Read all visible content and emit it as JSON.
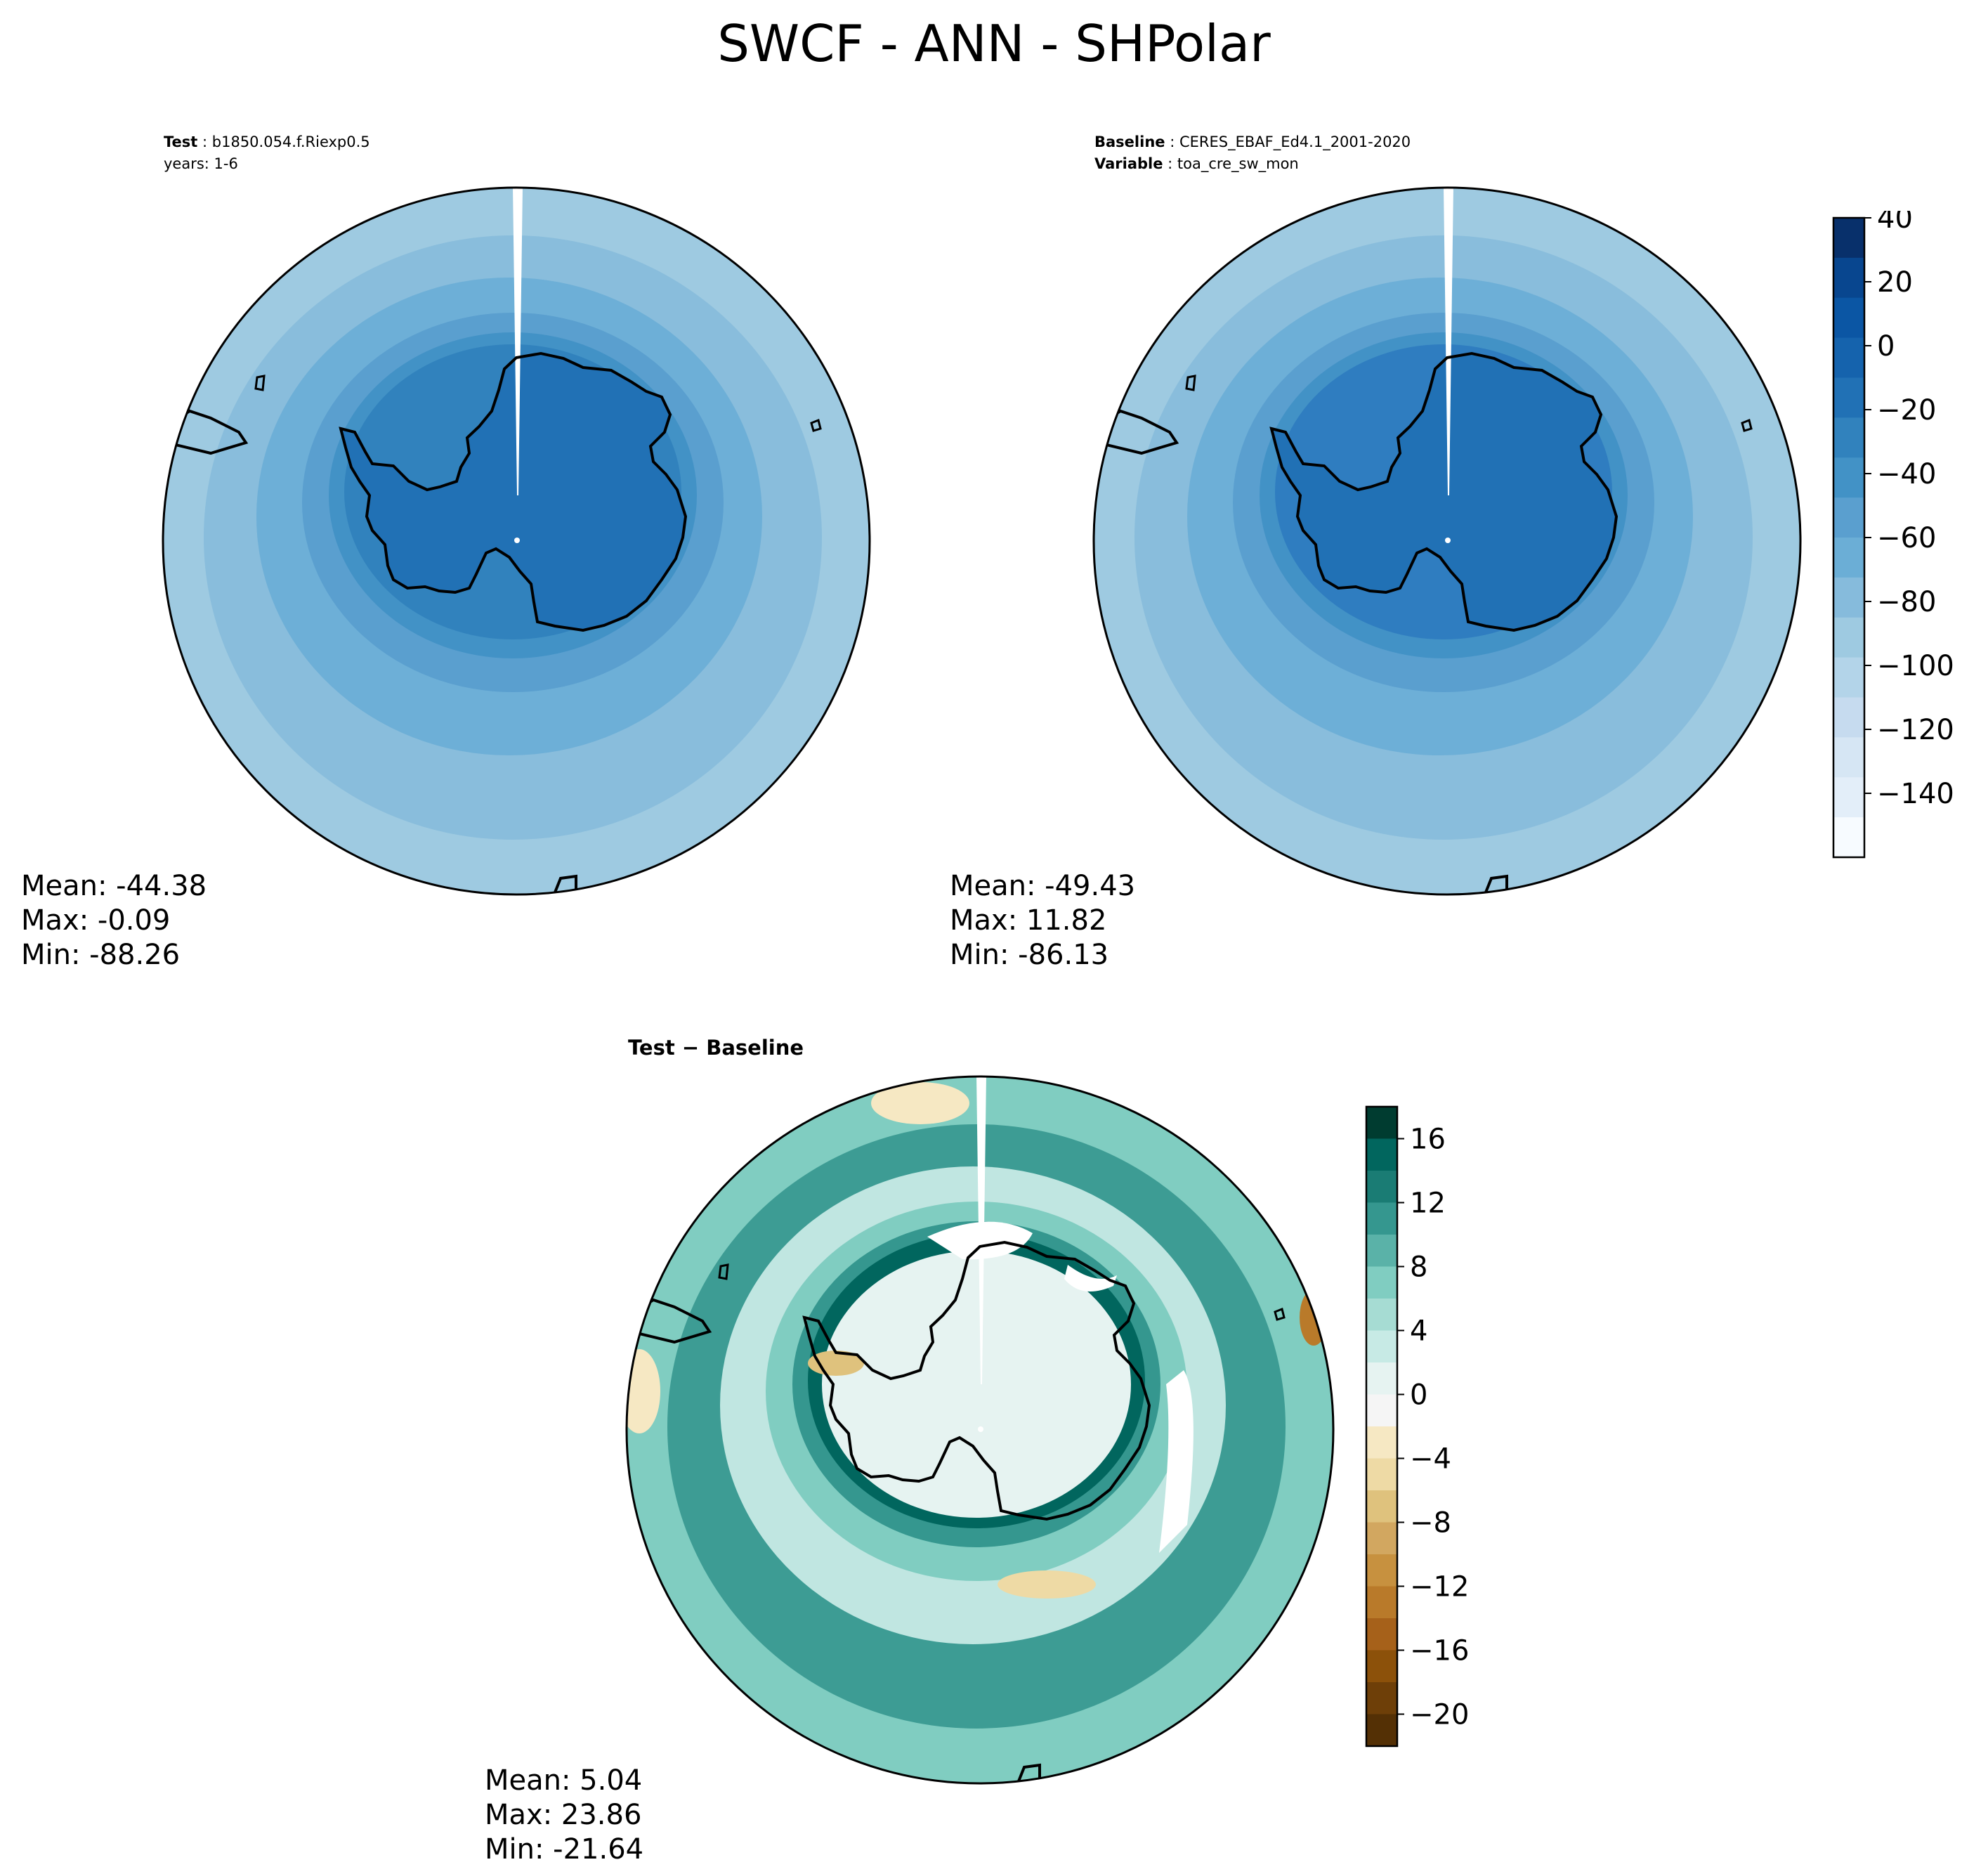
{
  "title": "SWCF - ANN - SHPolar",
  "panels": [
    {
      "id": "test",
      "header": {
        "label": "Test",
        "value": "b1850.054.f.Riexp0.5",
        "line2": "years: 1-6"
      },
      "stats": {
        "mean": "Mean: -44.38",
        "max": "Max: -0.09",
        "min": "Min: -88.26"
      },
      "center_value": -15,
      "fill": [
        "#2171b5",
        "#3182bd",
        "#4292c6",
        "#5a9fcf",
        "#6baed6",
        "#86bbdc",
        "#9ecae1"
      ]
    },
    {
      "id": "baseline",
      "header": {
        "label": "Baseline",
        "value": "CERES_EBAF_Ed4.1_2001-2020",
        "label2": "Variable",
        "value2": "toa_cre_sw_mon"
      },
      "stats": {
        "mean": "Mean: -49.43",
        "max": "Max: 11.82",
        "min": "Min: -86.13"
      },
      "center_value": -15,
      "fill": [
        "#2171b5",
        "#2f7dc0",
        "#4292c6",
        "#5a9fcf",
        "#6baed6",
        "#86bbdc",
        "#9ecae1"
      ]
    },
    {
      "id": "difference",
      "header": {
        "label": "Test − Baseline"
      },
      "stats": {
        "mean": "Mean:  5.04",
        "max": "Max: 23.86",
        "min": "Min: -21.64"
      },
      "fill": [
        "#c7eae5",
        "#01665e",
        "#35978f",
        "#80cdc1",
        "#c7eae5",
        "#35978f",
        "#80cdc1"
      ]
    }
  ],
  "colorbars": [
    {
      "id": "abs",
      "ticks": [
        "40",
        "20",
        "0",
        "−20",
        "−40",
        "−60",
        "−80",
        "−100",
        "−120",
        "−140"
      ],
      "colors": [
        "#08306b",
        "#08468f",
        "#0b56a4",
        "#1563ad",
        "#2171b5",
        "#3182bd",
        "#4292c6",
        "#5a9fcf",
        "#6baed6",
        "#86bbdc",
        "#9ecae1",
        "#b3d4e9",
        "#c6dbef",
        "#d6e6f4",
        "#e3eef9",
        "#f7fbff"
      ]
    },
    {
      "id": "diff",
      "ticks": [
        "16",
        "12",
        "8",
        "4",
        "0",
        "−4",
        "−8",
        "−12",
        "−16",
        "−20"
      ],
      "colors": [
        "#003c30",
        "#01665e",
        "#1a7c74",
        "#35978f",
        "#5ab2a8",
        "#80cdc1",
        "#a6dcd3",
        "#c7eae5",
        "#e6f3f1",
        "#f5f5f5",
        "#f6e8c3",
        "#eedaa5",
        "#dfc27d",
        "#d2a760",
        "#c7913f",
        "#b97a2a",
        "#a6611a",
        "#8c510a",
        "#6e3f08",
        "#543005"
      ]
    }
  ]
}
